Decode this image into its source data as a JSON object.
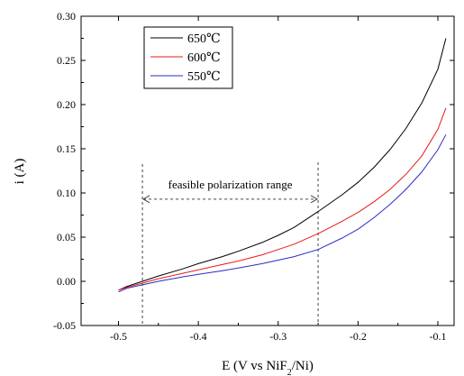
{
  "chart_data": {
    "type": "line",
    "title": "",
    "xlabel": "E (V vs NiF",
    "xlabel_sub": "2",
    "xlabel_tail": "/Ni)",
    "ylabel": "i (A)",
    "xlim": [
      -0.55,
      -0.08
    ],
    "ylim": [
      -0.05,
      0.3
    ],
    "xticks": [
      -0.5,
      -0.4,
      -0.3,
      -0.2,
      -0.1
    ],
    "xtick_labels": [
      "-0.5",
      "-0.4",
      "-0.3",
      "-0.2",
      "-0.1"
    ],
    "yticks": [
      -0.05,
      0.0,
      0.05,
      0.1,
      0.15,
      0.2,
      0.25,
      0.3
    ],
    "ytick_labels": [
      "-0.05",
      "0.00",
      "0.05",
      "0.10",
      "0.15",
      "0.20",
      "0.25",
      "0.30"
    ],
    "grid": false,
    "legend_position": "top-left",
    "series": [
      {
        "name": "650℃",
        "color": "#000000",
        "x": [
          -0.5,
          -0.49,
          -0.47,
          -0.45,
          -0.42,
          -0.4,
          -0.37,
          -0.35,
          -0.32,
          -0.3,
          -0.28,
          -0.25,
          -0.22,
          -0.2,
          -0.18,
          -0.16,
          -0.14,
          -0.12,
          -0.1,
          -0.09
        ],
        "y": [
          -0.01,
          -0.006,
          0.0,
          0.006,
          0.014,
          0.02,
          0.028,
          0.034,
          0.044,
          0.052,
          0.061,
          0.079,
          0.098,
          0.112,
          0.129,
          0.149,
          0.173,
          0.202,
          0.24,
          0.275
        ]
      },
      {
        "name": "600℃",
        "color": "#e8191d",
        "x": [
          -0.5,
          -0.49,
          -0.47,
          -0.45,
          -0.42,
          -0.4,
          -0.37,
          -0.35,
          -0.32,
          -0.3,
          -0.28,
          -0.25,
          -0.22,
          -0.2,
          -0.18,
          -0.16,
          -0.14,
          -0.12,
          -0.1,
          -0.09
        ],
        "y": [
          -0.01,
          -0.007,
          -0.002,
          0.003,
          0.009,
          0.013,
          0.019,
          0.023,
          0.03,
          0.036,
          0.042,
          0.054,
          0.068,
          0.078,
          0.09,
          0.104,
          0.121,
          0.142,
          0.172,
          0.196
        ]
      },
      {
        "name": "550℃",
        "color": "#2b2bc8",
        "x": [
          -0.5,
          -0.49,
          -0.47,
          -0.45,
          -0.42,
          -0.4,
          -0.37,
          -0.35,
          -0.32,
          -0.3,
          -0.28,
          -0.25,
          -0.22,
          -0.2,
          -0.18,
          -0.16,
          -0.14,
          -0.12,
          -0.1,
          -0.09
        ],
        "y": [
          -0.012,
          -0.008,
          -0.004,
          0.0,
          0.005,
          0.008,
          0.012,
          0.015,
          0.02,
          0.024,
          0.028,
          0.036,
          0.049,
          0.059,
          0.072,
          0.087,
          0.104,
          0.124,
          0.149,
          0.166
        ]
      }
    ],
    "annotations": {
      "range_text": "feasible polarization range",
      "range_x": [
        -0.47,
        -0.25
      ],
      "range_y": 0.093
    }
  }
}
